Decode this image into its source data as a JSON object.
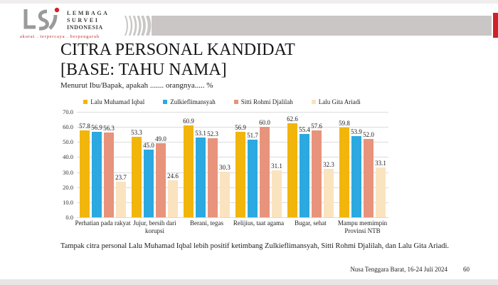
{
  "header": {
    "logo": {
      "acronym": "LSI",
      "lines": [
        "LEMBAGA",
        "SURVEI",
        "INDONESIA"
      ],
      "tagline": "akurat . terpercaya . berpengaruh"
    },
    "colors": {
      "accent_red": "#d0202a",
      "band_gray": "#cac6c6",
      "logo_gray": "#9a9a9a"
    }
  },
  "slide": {
    "title_line1": "CITRA PERSONAL KANDIDAT",
    "title_line2": "[BASE: TAHU NAMA]",
    "subtitle": "Menurut Ibu/Bapak, apakah ....... orangnya..... %",
    "note": "Tampak citra personal Lalu Muhamad Iqbal lebih positif ketimbang Zulkieflimansyah, Sitti Rohmi Djalilah, dan Lalu Gita Ariadi.",
    "footer": {
      "location_date": "Nusa Tenggara Barat, 16-24 Juli 2024",
      "page_number": "60"
    }
  },
  "chart_data": {
    "type": "bar",
    "title": "",
    "xlabel": "",
    "ylabel": "",
    "categories": [
      "Perhatian pada rakyat",
      "Jujur, bersih dari korupsi",
      "Berani, tegas",
      "Relijius, taat agama",
      "Bugar, sehat",
      "Mampu memimpin Provinsi NTB"
    ],
    "series": [
      {
        "name": "Lalu Muhamad Iqbal",
        "color": "#f2b50c",
        "values": [
          57.8,
          53.3,
          60.9,
          56.9,
          62.6,
          59.8
        ]
      },
      {
        "name": "Zulkieflimansyah",
        "color": "#2ba9e0",
        "values": [
          56.9,
          45.0,
          53.1,
          51.7,
          55.4,
          53.9
        ]
      },
      {
        "name": "Sitti Rohmi Djalilah",
        "color": "#e8937c",
        "values": [
          56.3,
          49.0,
          52.3,
          60.0,
          57.6,
          52.0
        ]
      },
      {
        "name": "Lalu Gita Ariadi",
        "color": "#fae3bf",
        "values": [
          23.7,
          24.6,
          30.3,
          31.1,
          32.3,
          33.1
        ]
      }
    ],
    "ylim": [
      0,
      70
    ],
    "y_ticks": [
      "70.0",
      "60.0",
      "50.0",
      "40.0",
      "30.0",
      "20.0",
      "10.0",
      "0.0"
    ],
    "grid": "horizontal",
    "legend_position": "top",
    "value_labels": true
  }
}
